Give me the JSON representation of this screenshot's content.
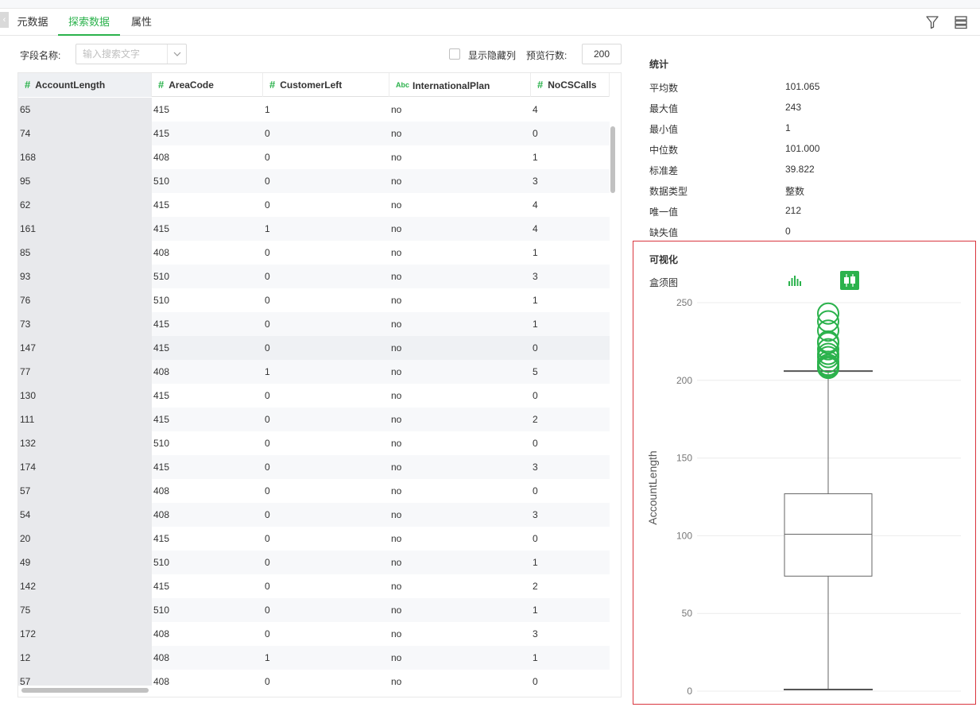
{
  "tabs": [
    {
      "label": "元数据"
    },
    {
      "label": "探索数据"
    },
    {
      "label": "属性"
    }
  ],
  "toolbar": {
    "filter_icon": "filter-icon",
    "list_icon": "list-icon"
  },
  "filter": {
    "field_label": "字段名称:",
    "search_placeholder": "输入搜索文字",
    "show_hidden_label": "显示隐藏列",
    "preview_rows_label": "预览行数:",
    "preview_rows_value": "200"
  },
  "table": {
    "columns": [
      {
        "type": "#",
        "name": "AccountLength"
      },
      {
        "type": "#",
        "name": "AreaCode"
      },
      {
        "type": "#",
        "name": "CustomerLeft"
      },
      {
        "type": "Abc",
        "name": "InternationalPlan"
      },
      {
        "type": "#",
        "name": "NoCSCalls"
      }
    ],
    "rows": [
      [
        "65",
        "415",
        "1",
        "no",
        "4"
      ],
      [
        "74",
        "415",
        "0",
        "no",
        "0"
      ],
      [
        "168",
        "408",
        "0",
        "no",
        "1"
      ],
      [
        "95",
        "510",
        "0",
        "no",
        "3"
      ],
      [
        "62",
        "415",
        "0",
        "no",
        "4"
      ],
      [
        "161",
        "415",
        "1",
        "no",
        "4"
      ],
      [
        "85",
        "408",
        "0",
        "no",
        "1"
      ],
      [
        "93",
        "510",
        "0",
        "no",
        "3"
      ],
      [
        "76",
        "510",
        "0",
        "no",
        "1"
      ],
      [
        "73",
        "415",
        "0",
        "no",
        "1"
      ],
      [
        "147",
        "415",
        "0",
        "no",
        "0"
      ],
      [
        "77",
        "408",
        "1",
        "no",
        "5"
      ],
      [
        "130",
        "415",
        "0",
        "no",
        "0"
      ],
      [
        "111",
        "415",
        "0",
        "no",
        "2"
      ],
      [
        "132",
        "510",
        "0",
        "no",
        "0"
      ],
      [
        "174",
        "415",
        "0",
        "no",
        "3"
      ],
      [
        "57",
        "408",
        "0",
        "no",
        "0"
      ],
      [
        "54",
        "408",
        "0",
        "no",
        "3"
      ],
      [
        "20",
        "415",
        "0",
        "no",
        "0"
      ],
      [
        "49",
        "510",
        "0",
        "no",
        "1"
      ],
      [
        "142",
        "415",
        "0",
        "no",
        "2"
      ],
      [
        "75",
        "510",
        "0",
        "no",
        "1"
      ],
      [
        "172",
        "408",
        "0",
        "no",
        "3"
      ],
      [
        "12",
        "408",
        "1",
        "no",
        "1"
      ],
      [
        "57",
        "408",
        "0",
        "no",
        "0"
      ]
    ]
  },
  "stats": {
    "title": "统计",
    "items": [
      {
        "label": "平均数",
        "value": "101.065"
      },
      {
        "label": "最大值",
        "value": "243"
      },
      {
        "label": "最小值",
        "value": "1"
      },
      {
        "label": "中位数",
        "value": "101.000"
      },
      {
        "label": "标准差",
        "value": "39.822"
      },
      {
        "label": "数据类型",
        "value": "整数"
      },
      {
        "label": "唯一值",
        "value": "212"
      },
      {
        "label": "缺失值",
        "value": "0"
      }
    ]
  },
  "viz": {
    "title": "可视化",
    "chart_type_label": "盒须图",
    "histogram_icon": "histogram-icon",
    "boxplot_icon": "boxplot-icon",
    "accent": "#2bb24c"
  },
  "chart_data": {
    "type": "boxplot",
    "ylabel": "AccountLength",
    "ylim": [
      0,
      250
    ],
    "yticks": [
      0,
      50,
      100,
      150,
      200,
      250
    ],
    "grid": true,
    "box": {
      "min": 1,
      "q1": 74,
      "median": 101,
      "q3": 127,
      "whisker_high": 206
    },
    "outliers": [
      208,
      209,
      210,
      212,
      215,
      217,
      220,
      224,
      225,
      232,
      238,
      243
    ]
  }
}
